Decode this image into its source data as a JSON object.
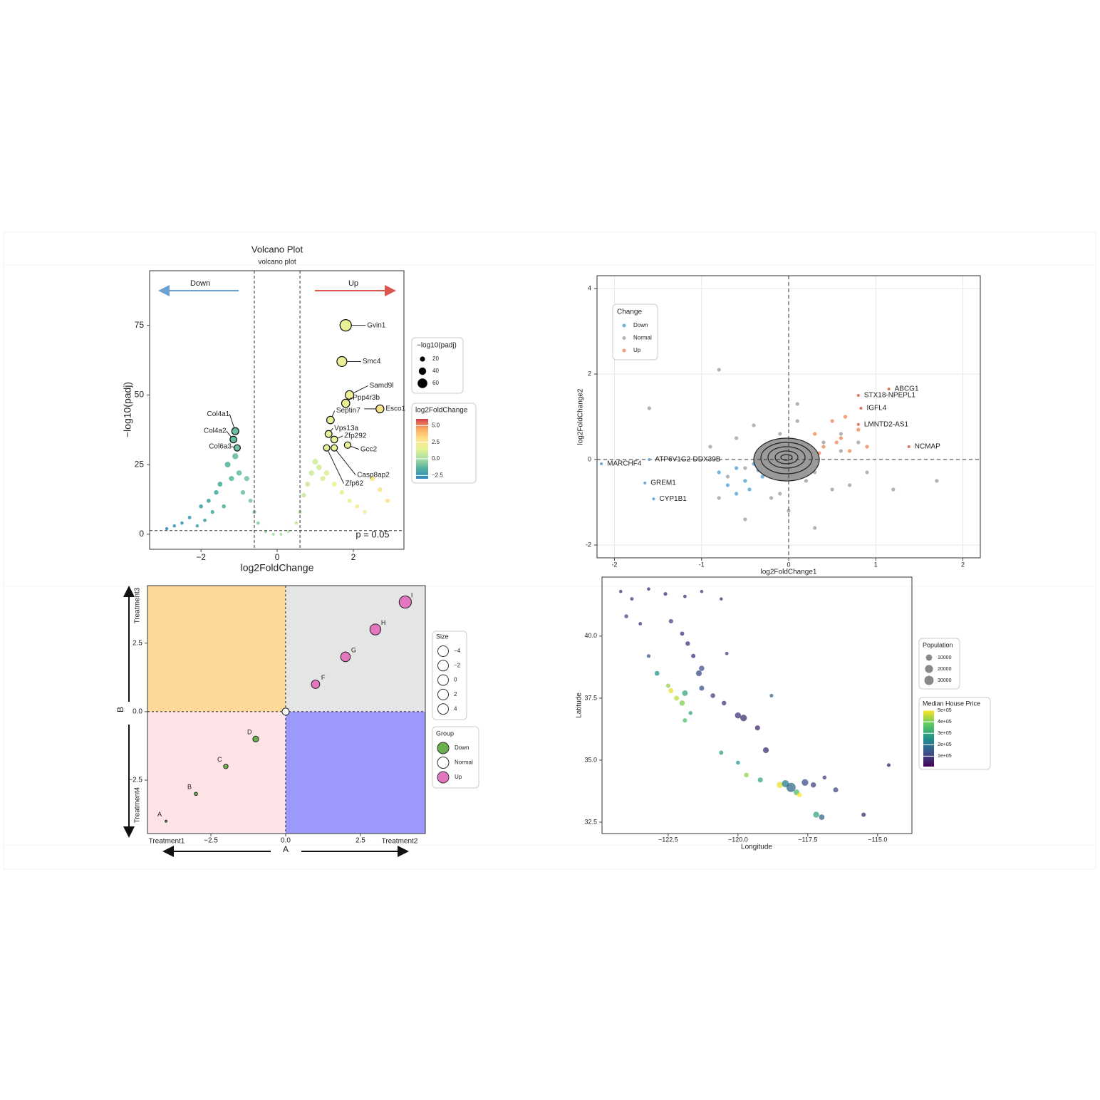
{
  "chart_data": [
    {
      "type": "volcano",
      "title": "Volcano Plot",
      "subtitle": "volcano plot",
      "xlabel": "log2FoldChange",
      "ylabel": "−log10(padj)",
      "xlim": [
        -3.35,
        3.33
      ],
      "ylim": [
        -5.4,
        94.6
      ],
      "xticks": [
        {
          "value": -2,
          "label": "−2"
        },
        0,
        2
      ],
      "yticks": [
        0,
        25,
        50,
        75
      ],
      "x": [
        -2.9,
        -2.7,
        -2.5,
        -2.3,
        -2.1,
        -2.0,
        -1.9,
        -1.8,
        -1.7,
        -1.6,
        -1.5,
        -1.4,
        -1.3,
        -1.2,
        -1.1,
        -1.0,
        -0.9,
        -0.8,
        -0.7,
        -0.6,
        -0.5,
        -0.3,
        -0.1,
        0.1,
        0.3,
        0.5,
        0.6,
        0.7,
        0.8,
        0.9,
        1.0,
        1.1,
        1.2,
        1.3,
        1.5,
        1.7,
        1.9,
        2.1,
        2.3,
        2.5,
        2.7,
        2.9
      ],
      "values": [
        2,
        3,
        4,
        6,
        3,
        10,
        5,
        12,
        8,
        15,
        18,
        10,
        25,
        20,
        28,
        22,
        15,
        20,
        12,
        8,
        4,
        1,
        0,
        0,
        1,
        4,
        8,
        14,
        18,
        22,
        26,
        24,
        20,
        22,
        18,
        15,
        12,
        10,
        8,
        20,
        16,
        12
      ],
      "highlights": {
        "labels": [
          "Gvin1",
          "Smc4",
          "Samd9l",
          "Ppp4r3b",
          "Esco1",
          "Septin7",
          "Vps13a",
          "Zfp292",
          "Gcc2",
          "Casp8ap2",
          "Zfp62",
          "Col4a1",
          "Col4a2",
          "Col6a3"
        ],
        "x": [
          1.8,
          1.7,
          1.9,
          1.8,
          2.7,
          1.4,
          1.35,
          1.5,
          1.85,
          1.5,
          1.3,
          -1.1,
          -1.15,
          -1.05
        ],
        "values": [
          75,
          62,
          50,
          47,
          45,
          41,
          36,
          34,
          32,
          31,
          31,
          37,
          34,
          31
        ]
      },
      "thresholds": {
        "x": [
          -0.6,
          0.6
        ],
        "y": 1.3
      },
      "annotations": {
        "down": "Down",
        "up": "Up",
        "p": "p = 0.05"
      },
      "annotation_colors": {
        "down": "#6a9fcf",
        "up": "#d9534f"
      },
      "size_legend": {
        "title": "−log10(padj)",
        "values": [
          20,
          40,
          60
        ]
      },
      "color_legend": {
        "title": "log2FoldChange",
        "range": [
          -3,
          6
        ],
        "colors": [
          "#3288bd",
          "#4fb0a0",
          "#abdda4",
          "#e6f598",
          "#fee08b",
          "#fdae61",
          "#d53e4f"
        ],
        "ticks": [
          {
            "value": 5,
            "label": "5.0"
          },
          {
            "value": 2.5,
            "label": "2.5"
          },
          {
            "value": 0,
            "label": "0.0"
          },
          {
            "value": -2.5,
            "label": "−2.5"
          }
        ]
      }
    },
    {
      "type": "labeled-scatter",
      "xlabel": "log2FoldChange1",
      "ylabel": "log2FoldChange2",
      "xlim": [
        -2.2,
        2.2
      ],
      "ylim": [
        -2.3,
        4.3
      ],
      "xticks": [
        -2,
        -1,
        0,
        1,
        2
      ],
      "yticks": [
        -2,
        0,
        2,
        4
      ],
      "grid": true,
      "hlines": [
        0
      ],
      "vlines": [
        0
      ],
      "legend_title": "Change",
      "series": [
        {
          "name": "Down",
          "color": "#74b3dc",
          "x": [
            -0.8,
            -0.7,
            -0.6,
            -0.5,
            -0.4,
            -0.3,
            -0.6,
            -0.45,
            -0.35,
            -0.25
          ],
          "values": [
            -0.3,
            -0.6,
            -0.2,
            -0.5,
            -0.1,
            -0.4,
            -0.8,
            -0.7,
            -0.25,
            -0.15
          ]
        },
        {
          "name": "Normal",
          "color": "#b3b3b3",
          "x": [
            -0.9,
            -0.7,
            -0.6,
            -0.5,
            -0.4,
            -0.3,
            -0.2,
            -0.1,
            0,
            0.1,
            0.2,
            0.3,
            0.4,
            0.5,
            0.6,
            0.7,
            0.9,
            -1.6,
            0.8,
            -0.8,
            0.1,
            -0.1,
            0.2,
            -0.2,
            -0.8,
            1.2,
            1.7,
            -0.5,
            0.3,
            0.6
          ],
          "values": [
            0.3,
            -0.4,
            0.5,
            -0.2,
            0.8,
            0.1,
            -0.9,
            0.6,
            -1.2,
            0.9,
            -0.5,
            -0.3,
            0.4,
            -0.7,
            0.2,
            -0.6,
            -0.3,
            1.2,
            0.4,
            -0.9,
            1.3,
            -0.8,
            0.2,
            0.4,
            2.1,
            -0.7,
            -0.5,
            -1.4,
            -1.6,
            0.6
          ]
        },
        {
          "name": "Up",
          "color": "#f4a07a",
          "x": [
            0.3,
            0.4,
            0.5,
            0.6,
            0.7,
            0.8,
            0.35,
            0.55,
            0.65,
            0.9
          ],
          "values": [
            0.6,
            0.3,
            0.9,
            0.5,
            0.2,
            0.7,
            0.15,
            0.4,
            1.0,
            0.3
          ]
        }
      ],
      "genes": {
        "labels": [
          "ABCG1",
          "STX18-NPEPL1",
          "IGFL4",
          "LMNTD2-AS1",
          "NCMAP",
          "MARCHF4",
          "ATP6V1G2-DDX39B",
          "GREM1",
          "CYP1B1"
        ],
        "x": [
          1.15,
          0.8,
          0.83,
          0.8,
          1.38,
          -2.15,
          -1.6,
          -1.65,
          -1.55
        ],
        "values": [
          1.65,
          1.5,
          1.2,
          0.82,
          0.3,
          -0.1,
          0.0,
          -0.55,
          -0.92
        ],
        "colors": [
          "#e0735a",
          "#e0735a",
          "#e0735a",
          "#e0735a",
          "#e0735a",
          "#6fa8d6",
          "#6fa8d6",
          "#6fa8d6",
          "#6fa8d6"
        ]
      }
    },
    {
      "type": "quadrant",
      "xlabel": "A",
      "ylabel": "B",
      "xlim": [
        -4.62,
        4.67
      ],
      "ylim": [
        -4.45,
        4.6
      ],
      "xticks": [
        {
          "value": -2.5,
          "label": "−2.5"
        },
        {
          "value": 0,
          "label": "0.0"
        },
        2.5
      ],
      "yticks": [
        {
          "value": -2.5,
          "label": "−2.5"
        },
        {
          "value": 0,
          "label": "0.0"
        },
        2.5
      ],
      "quadrant_colors": [
        "#fdd998",
        "#e5e5e5",
        "#fde2e6",
        "#9b99fb"
      ],
      "corner_labels": [
        "Treatment1",
        "Treatment2",
        "Treatment3",
        "Treatment4"
      ],
      "labels": [
        "A",
        "B",
        "C",
        "D",
        null,
        "F",
        "G",
        "H",
        "I"
      ],
      "x": [
        -4,
        -3,
        -2,
        -1,
        0,
        1,
        2,
        3,
        4
      ],
      "values": [
        -4,
        -3,
        -2,
        -1,
        0,
        1,
        2,
        3,
        4
      ],
      "size": [
        -4,
        -3,
        -2,
        -1,
        0,
        1,
        2,
        3,
        4
      ],
      "group": [
        "Down",
        "Down",
        "Down",
        "Down",
        "Normal",
        "Up",
        "Up",
        "Up",
        "Up"
      ],
      "size_legend": {
        "title": "Size",
        "values": [
          {
            "value": -4,
            "label": "−4"
          },
          {
            "value": -2,
            "label": "−2"
          },
          0,
          2,
          4
        ]
      },
      "groups": {
        "title": "Group",
        "names": [
          "Down",
          "Normal",
          "Up"
        ],
        "colors": [
          "#6ab04c",
          "#ffffff",
          "#e277c0"
        ]
      }
    },
    {
      "type": "bubble-map",
      "xlabel": "Longitude",
      "ylabel": "Latitude",
      "xlim": [
        -124.87,
        -113.77
      ],
      "ylim": [
        32.04,
        42.38
      ],
      "xticks": [
        {
          "value": -122.5,
          "label": "−122.5"
        },
        {
          "value": -120,
          "label": "−120.0"
        },
        {
          "value": -117.5,
          "label": "−117.5"
        },
        {
          "value": -115,
          "label": "−115.0"
        }
      ],
      "yticks": [
        32.5,
        {
          "value": 35,
          "label": "35.0"
        },
        37.5,
        {
          "value": 40,
          "label": "40.0"
        }
      ],
      "x": [
        -124.2,
        -123.8,
        -123.2,
        -122.6,
        -121.9,
        -121.3,
        -120.6,
        -124.0,
        -123.5,
        -122.4,
        -122.0,
        -121.8,
        -121.6,
        -121.3,
        -121.4,
        -123.2,
        -122.9,
        -122.5,
        -122.4,
        -122.2,
        -122.0,
        -121.9,
        -121.3,
        -120.9,
        -121.9,
        -121.7,
        -120.5,
        -120.0,
        -119.8,
        -119.3,
        -119.0,
        -120.6,
        -120.0,
        -119.7,
        -119.2,
        -118.5,
        -118.3,
        -118.1,
        -117.9,
        -117.6,
        -117.3,
        -117.2,
        -117.0,
        -116.5,
        -115.5,
        -114.6,
        -116.9,
        -120.4,
        -118.8,
        -117.8
      ],
      "values": [
        41.8,
        41.5,
        41.9,
        41.7,
        41.6,
        41.8,
        41.5,
        40.8,
        40.5,
        40.6,
        40.1,
        39.7,
        39.2,
        38.7,
        38.5,
        39.2,
        38.5,
        38.0,
        37.8,
        37.5,
        37.3,
        37.7,
        37.9,
        37.6,
        36.6,
        36.9,
        37.3,
        36.8,
        36.7,
        36.3,
        35.4,
        35.3,
        34.9,
        34.4,
        34.2,
        34.0,
        34.05,
        33.9,
        33.7,
        34.1,
        34.0,
        32.8,
        32.7,
        33.8,
        32.8,
        34.8,
        34.3,
        39.3,
        37.6,
        33.6
      ],
      "population": [
        800,
        1200,
        900,
        1500,
        1000,
        700,
        600,
        2000,
        1100,
        3000,
        2500,
        3500,
        2800,
        6000,
        8000,
        1500,
        4000,
        3000,
        5000,
        4500,
        6000,
        7000,
        5000,
        4000,
        3000,
        2000,
        3500,
        9000,
        12000,
        5000,
        8000,
        2500,
        2000,
        4000,
        5000,
        10000,
        15000,
        30000,
        8000,
        12000,
        6000,
        9000,
        7000,
        5000,
        3000,
        1500,
        2000,
        1000,
        1200,
        4000
      ],
      "price": [
        90000,
        110000,
        80000,
        85000,
        70000,
        75000,
        65000,
        120000,
        100000,
        110000,
        90000,
        95000,
        85000,
        130000,
        120000,
        150000,
        250000,
        420000,
        480000,
        450000,
        400000,
        300000,
        140000,
        110000,
        350000,
        300000,
        90000,
        85000,
        75000,
        70000,
        80000,
        280000,
        260000,
        420000,
        300000,
        480000,
        220000,
        180000,
        350000,
        130000,
        110000,
        300000,
        170000,
        120000,
        75000,
        60000,
        100000,
        100000,
        160000,
        500000
      ],
      "size_legend": {
        "title": "Population",
        "values": [
          10000,
          20000,
          30000
        ]
      },
      "color_legend": {
        "title": "Median House Price",
        "range": [
          9000,
          500001
        ],
        "colors": [
          "#440154",
          "#3b528b",
          "#21918c",
          "#5ec962",
          "#fde725"
        ],
        "ticks": [
          {
            "value": 500000,
            "label": "5e+05"
          },
          {
            "value": 400000,
            "label": "4e+05"
          },
          {
            "value": 300000,
            "label": "3e+05"
          },
          {
            "value": 200000,
            "label": "2e+05"
          },
          {
            "value": 100000,
            "label": "1e+05"
          }
        ]
      }
    }
  ]
}
